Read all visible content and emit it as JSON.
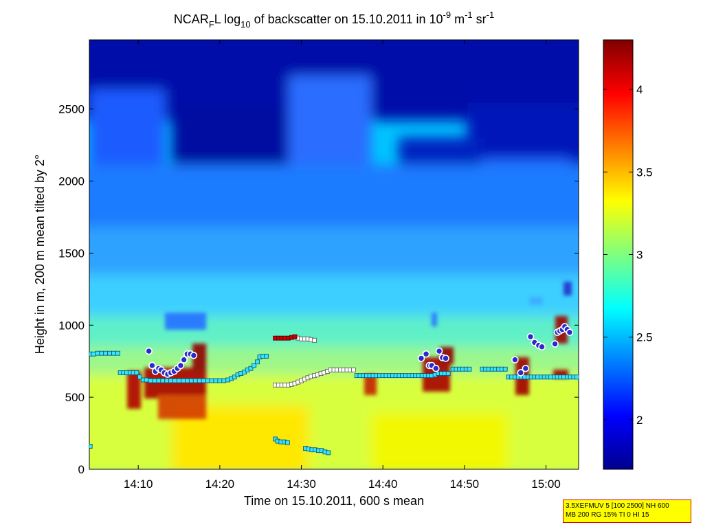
{
  "chart_data": {
    "type": "heatmap",
    "title": "NCAR",
    "title_parts": {
      "prefix": "NCAR",
      "sub1": "F",
      "mid1": "L log",
      "sub2": "10",
      "mid2": " of backscatter on 15.10.2011 in 10",
      "sup1": "-9",
      "mid3": " m",
      "sup2": "-1",
      "mid4": " sr",
      "sup3": "-1"
    },
    "xlabel": "Time on 15.10.2011, 600 s mean",
    "ylabel": "Height in m, 200 m mean tilted by 2°",
    "xlim": [
      "14:04",
      "15:04"
    ],
    "ylim": [
      0,
      2980
    ],
    "x_ticks": [
      "14:10",
      "14:20",
      "14:30",
      "14:40",
      "14:50",
      "15:00"
    ],
    "x_tick_minutes": [
      10,
      20,
      30,
      40,
      50,
      60
    ],
    "y_ticks": [
      0,
      500,
      1000,
      1500,
      2000,
      2500
    ],
    "colorbar": {
      "colormap": "jet",
      "range": [
        1.7,
        4.3
      ],
      "ticks": [
        "2",
        "2.5",
        "3",
        "3.5",
        "4"
      ],
      "tick_values": [
        2,
        2.5,
        3,
        3.5,
        4
      ]
    },
    "series": [
      {
        "marker": "cyan-square",
        "points": [
          [
            4.1,
            800
          ],
          [
            4.5,
            800
          ],
          [
            5,
            805
          ],
          [
            5.5,
            805
          ],
          [
            6,
            805
          ],
          [
            6.5,
            805
          ],
          [
            7,
            805
          ],
          [
            7.5,
            805
          ],
          [
            7.8,
            670
          ],
          [
            8.2,
            670
          ],
          [
            8.6,
            670
          ],
          [
            9,
            670
          ],
          [
            9.4,
            670
          ],
          [
            9.8,
            670
          ],
          [
            10.2,
            640
          ],
          [
            10.6,
            620
          ],
          [
            11,
            620
          ],
          [
            11.5,
            615
          ],
          [
            12,
            615
          ],
          [
            12.5,
            615
          ],
          [
            13,
            615
          ],
          [
            13.5,
            615
          ],
          [
            14,
            615
          ],
          [
            14.5,
            615
          ],
          [
            15,
            615
          ],
          [
            15.5,
            615
          ],
          [
            16,
            615
          ],
          [
            16.5,
            615
          ],
          [
            17,
            615
          ],
          [
            17.5,
            615
          ],
          [
            18,
            615
          ],
          [
            18.5,
            615
          ],
          [
            19,
            615
          ],
          [
            19.5,
            615
          ],
          [
            20,
            615
          ],
          [
            20.5,
            615
          ],
          [
            21,
            620
          ],
          [
            21.4,
            630
          ],
          [
            21.8,
            640
          ],
          [
            22.2,
            655
          ],
          [
            22.6,
            665
          ],
          [
            23,
            675
          ],
          [
            23.4,
            690
          ],
          [
            23.8,
            700
          ],
          [
            24.2,
            720
          ],
          [
            24.6,
            745
          ],
          [
            24.9,
            780
          ],
          [
            25.3,
            785
          ],
          [
            25.7,
            785
          ],
          [
            26.8,
            210
          ],
          [
            27.1,
            195
          ],
          [
            27.5,
            190
          ],
          [
            27.9,
            190
          ],
          [
            28.3,
            185
          ],
          [
            30.5,
            145
          ],
          [
            30.9,
            140
          ],
          [
            31.3,
            135
          ],
          [
            31.7,
            135
          ],
          [
            32.1,
            130
          ],
          [
            32.5,
            130
          ],
          [
            32.9,
            120
          ],
          [
            33.3,
            115
          ],
          [
            36.8,
            650
          ],
          [
            37.2,
            650
          ],
          [
            37.6,
            650
          ],
          [
            38,
            650
          ],
          [
            38.4,
            650
          ],
          [
            38.8,
            650
          ],
          [
            39.2,
            650
          ],
          [
            39.6,
            650
          ],
          [
            40,
            650
          ],
          [
            40.4,
            650
          ],
          [
            40.8,
            650
          ],
          [
            41.2,
            650
          ],
          [
            41.6,
            650
          ],
          [
            42,
            650
          ],
          [
            42.4,
            650
          ],
          [
            42.8,
            650
          ],
          [
            43.2,
            650
          ],
          [
            43.6,
            650
          ],
          [
            44,
            650
          ],
          [
            44.4,
            650
          ],
          [
            44.8,
            650
          ],
          [
            45.2,
            650
          ],
          [
            45.6,
            650
          ],
          [
            46,
            650
          ],
          [
            46.4,
            655
          ],
          [
            46.8,
            665
          ],
          [
            47.2,
            665
          ],
          [
            47.6,
            665
          ],
          [
            48,
            665
          ],
          [
            48.6,
            695
          ],
          [
            49,
            695
          ],
          [
            49.4,
            695
          ],
          [
            49.8,
            695
          ],
          [
            50.2,
            695
          ],
          [
            50.6,
            695
          ],
          [
            52.2,
            695
          ],
          [
            52.6,
            695
          ],
          [
            53,
            695
          ],
          [
            53.4,
            695
          ],
          [
            53.8,
            695
          ],
          [
            54.2,
            695
          ],
          [
            54.6,
            695
          ],
          [
            55,
            695
          ],
          [
            55.4,
            640
          ],
          [
            55.8,
            640
          ],
          [
            56.2,
            640
          ],
          [
            56.6,
            640
          ],
          [
            57,
            640
          ],
          [
            57.4,
            640
          ],
          [
            57.8,
            640
          ],
          [
            58.2,
            640
          ],
          [
            58.6,
            640
          ],
          [
            59,
            640
          ],
          [
            59.4,
            640
          ],
          [
            59.8,
            640
          ],
          [
            60.2,
            640
          ],
          [
            60.6,
            640
          ],
          [
            61,
            640
          ],
          [
            61.4,
            640
          ],
          [
            61.8,
            640
          ],
          [
            62.2,
            640
          ],
          [
            62.6,
            640
          ],
          [
            63,
            640
          ],
          [
            63.4,
            640
          ],
          [
            63.8,
            640
          ],
          [
            4.1,
            160
          ]
        ]
      },
      {
        "marker": "white-square",
        "points": [
          [
            26.8,
            585
          ],
          [
            27.2,
            585
          ],
          [
            27.6,
            585
          ],
          [
            28,
            585
          ],
          [
            28.4,
            585
          ],
          [
            28.8,
            590
          ],
          [
            29.2,
            595
          ],
          [
            29.6,
            605
          ],
          [
            30,
            615
          ],
          [
            30.4,
            625
          ],
          [
            30.8,
            635
          ],
          [
            31.2,
            645
          ],
          [
            31.6,
            650
          ],
          [
            32,
            655
          ],
          [
            32.4,
            665
          ],
          [
            32.8,
            670
          ],
          [
            33.2,
            680
          ],
          [
            33.6,
            690
          ],
          [
            34,
            690
          ],
          [
            34.4,
            690
          ],
          [
            34.8,
            690
          ],
          [
            35.2,
            690
          ],
          [
            35.6,
            690
          ],
          [
            36,
            690
          ],
          [
            36.4,
            690
          ],
          [
            29.6,
            910
          ],
          [
            30,
            905
          ],
          [
            30.4,
            905
          ],
          [
            30.8,
            905
          ],
          [
            31.2,
            900
          ],
          [
            31.6,
            895
          ]
        ]
      },
      {
        "marker": "red-square",
        "points": [
          [
            26.8,
            910
          ],
          [
            27.2,
            910
          ],
          [
            27.6,
            910
          ],
          [
            28,
            910
          ],
          [
            28.4,
            910
          ],
          [
            28.8,
            915
          ],
          [
            29.2,
            920
          ]
        ]
      },
      {
        "marker": "blue-circle",
        "points": [
          [
            11.3,
            820
          ],
          [
            11.7,
            720
          ],
          [
            12.1,
            680
          ],
          [
            12.5,
            700
          ],
          [
            12.8,
            690
          ],
          [
            13.2,
            670
          ],
          [
            13.6,
            660
          ],
          [
            14,
            670
          ],
          [
            14.4,
            680
          ],
          [
            14.8,
            700
          ],
          [
            15.2,
            720
          ],
          [
            15.6,
            760
          ],
          [
            16,
            800
          ],
          [
            16.4,
            800
          ],
          [
            16.8,
            790
          ],
          [
            44.7,
            770
          ],
          [
            45.3,
            800
          ],
          [
            45.7,
            720
          ],
          [
            46,
            720
          ],
          [
            46.5,
            700
          ],
          [
            46.9,
            820
          ],
          [
            47.3,
            775
          ],
          [
            47.7,
            770
          ],
          [
            56.2,
            760
          ],
          [
            56.9,
            670
          ],
          [
            57.5,
            700
          ],
          [
            58.1,
            920
          ],
          [
            58.6,
            880
          ],
          [
            59.1,
            860
          ],
          [
            59.5,
            850
          ],
          [
            61.1,
            870
          ],
          [
            61.4,
            950
          ],
          [
            61.7,
            960
          ],
          [
            62,
            970
          ],
          [
            62.3,
            990
          ],
          [
            62.6,
            970
          ],
          [
            62.9,
            950
          ]
        ]
      }
    ]
  },
  "info_box": {
    "line1": "3.5XEFMUV 5 [100 2500] NH 600",
    "line2": "MB 200 RG 15% TI 0 HI 15"
  }
}
